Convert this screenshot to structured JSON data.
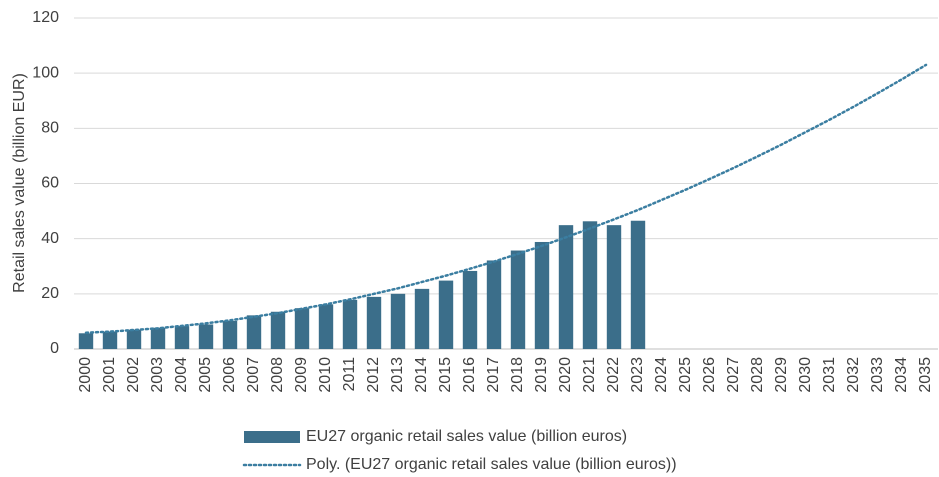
{
  "chart_data": {
    "type": "bar",
    "y_label": "Retail sales value (billion EUR)",
    "categories": [
      "2000",
      "2001",
      "2002",
      "2003",
      "2004",
      "2005",
      "2006",
      "2007",
      "2008",
      "2009",
      "2010",
      "2011",
      "2012",
      "2013",
      "2014",
      "2015",
      "2016",
      "2017",
      "2018",
      "2019",
      "2020",
      "2021",
      "2022",
      "2023",
      "2024",
      "2025",
      "2026",
      "2027",
      "2028",
      "2029",
      "2030",
      "2031",
      "2032",
      "2033",
      "2034",
      "2035"
    ],
    "series": [
      {
        "name": "EU27 organic retail sales value (billion euros)",
        "type": "bar",
        "color": "#3b6e8a",
        "values": [
          5.7,
          6.3,
          7.0,
          7.7,
          8.3,
          8.9,
          10.2,
          12.2,
          13.5,
          14.8,
          16.2,
          17.8,
          18.9,
          20.0,
          21.8,
          24.8,
          28.3,
          32.1,
          35.7,
          38.8,
          44.9,
          46.3,
          44.9,
          46.5,
          null,
          null,
          null,
          null,
          null,
          null,
          null,
          null,
          null,
          null,
          null,
          null
        ]
      },
      {
        "name": "Poly. (EU27 organic retail sales value (billion euros))",
        "type": "line",
        "style": "dotted",
        "color": "#3b7ea1",
        "values": [
          5.9,
          6.3,
          6.9,
          7.5,
          8.4,
          9.3,
          10.4,
          11.7,
          13.0,
          14.6,
          16.2,
          18.0,
          20.0,
          22.0,
          24.3,
          26.6,
          29.1,
          31.7,
          34.5,
          37.4,
          40.5,
          43.7,
          47.0,
          50.4,
          54.1,
          57.8,
          61.7,
          65.7,
          69.9,
          74.2,
          78.7,
          83.2,
          87.9,
          92.8,
          97.8,
          103.0
        ]
      }
    ],
    "ylim": [
      0,
      120
    ],
    "yticks": [
      0,
      20,
      40,
      60,
      80,
      100,
      120
    ],
    "grid": true,
    "legend": "bottom"
  }
}
